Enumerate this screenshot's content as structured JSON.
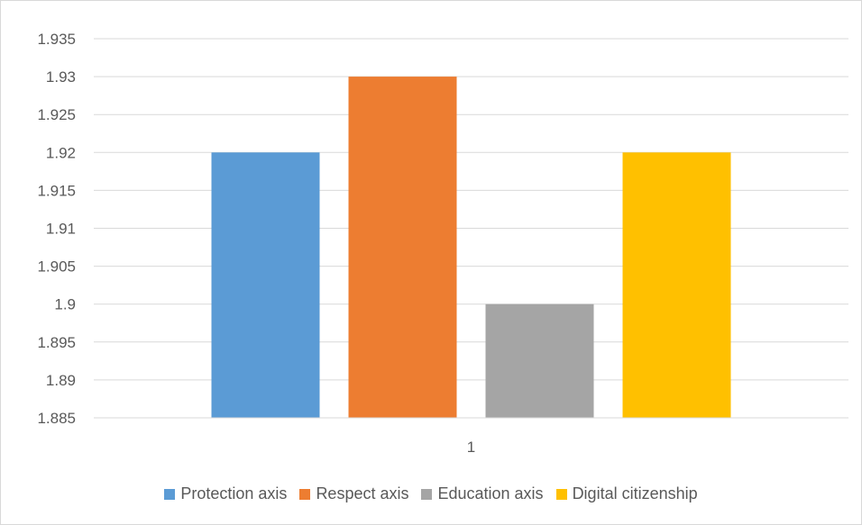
{
  "chart_data": {
    "type": "bar",
    "categories": [
      "1"
    ],
    "series": [
      {
        "name": "Protection axis",
        "values": [
          1.92
        ],
        "color": "#5b9bd5"
      },
      {
        "name": "Respect axis",
        "values": [
          1.93
        ],
        "color": "#ed7d31"
      },
      {
        "name": "Education axis",
        "values": [
          1.9
        ],
        "color": "#a5a5a5"
      },
      {
        "name": "Digital citizenship",
        "values": [
          1.92
        ],
        "color": "#ffc000"
      }
    ],
    "ylim": [
      1.885,
      1.935
    ],
    "yticks": [
      "1.885",
      "1.89",
      "1.895",
      "1.9",
      "1.905",
      "1.91",
      "1.915",
      "1.92",
      "1.925",
      "1.93",
      "1.935"
    ],
    "grid": true,
    "legend_position": "bottom"
  }
}
